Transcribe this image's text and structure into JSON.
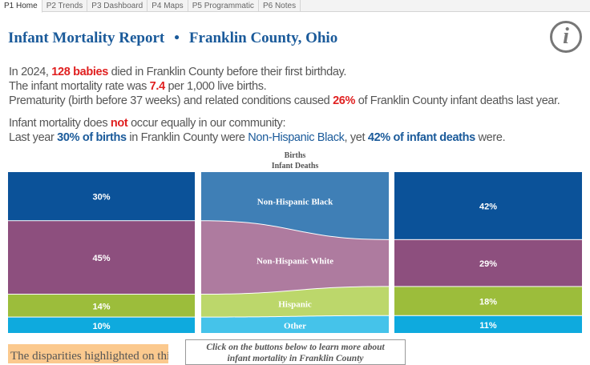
{
  "tabs": [
    "P1 Home",
    "P2 Trends",
    "P3 Dashboard",
    "P4 Maps",
    "P5 Programmatic",
    "P6 Notes"
  ],
  "active_tab": 0,
  "header": {
    "title": "Infant Mortality Report",
    "separator": "•",
    "county": "Franklin County, Ohio",
    "info_icon": "i"
  },
  "summary": {
    "l1a": "In 2024, ",
    "l1b": "128 babies",
    "l1c": " died in Franklin County before their first birthday.",
    "l2a": "The infant mortality rate was ",
    "l2b": "7.4",
    "l2c": " per 1,000 live births.",
    "l3a": "Prematurity (birth before 37 weeks) and related conditions caused ",
    "l3b": "26%",
    "l3c": " of Franklin County infant deaths last year.",
    "l4a": "Infant mortality does ",
    "l4b": "not",
    "l4c": " occur equally in our community:",
    "l5a": "Last year ",
    "l5b": "30% of births",
    "l5c": " in Franklin County were ",
    "l5d": "Non-Hispanic Black",
    "l5e": ", yet ",
    "l5f": "42% of infant deaths",
    "l5g": " were."
  },
  "chart_data": {
    "type": "bar",
    "legend": [
      "Births",
      "Infant Deaths"
    ],
    "categories": [
      "Non-Hispanic Black",
      "Non-Hispanic White",
      "Hispanic",
      "Other"
    ],
    "series": [
      {
        "name": "Births",
        "values": [
          30,
          45,
          14,
          10
        ]
      },
      {
        "name": "Infant Deaths",
        "values": [
          42,
          29,
          18,
          11
        ]
      }
    ],
    "colors": [
      "#0b5299",
      "#8d4f7e",
      "#9cbd3b",
      "#0eaade"
    ],
    "flow_colors": [
      "#3f7fb6",
      "#ae7b9f",
      "#bcd76b",
      "#45c3ea"
    ]
  },
  "footer": {
    "note": "The disparities highlighted on this",
    "cta_line1": "Click on the buttons below to learn more about",
    "cta_line2": "infant mortality in Franklin County"
  }
}
